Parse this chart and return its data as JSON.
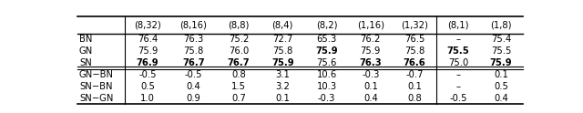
{
  "col_headers": [
    "",
    "(8,32)",
    "(8,16)",
    "(8,8)",
    "(8,4)",
    "(8,2)",
    "(1,16)",
    "(1,32)",
    "(8,1)",
    "(1,8)"
  ],
  "rows": [
    {
      "label": "BN",
      "values": [
        "76.4",
        "76.3",
        "75.2",
        "72.7",
        "65.3",
        "76.2",
        "76.5",
        "–",
        "75.4"
      ],
      "bold": [
        false,
        false,
        false,
        false,
        false,
        false,
        false,
        false,
        false
      ]
    },
    {
      "label": "GN",
      "values": [
        "75.9",
        "75.8",
        "76.0",
        "75.8",
        "75.9",
        "75.9",
        "75.8",
        "75.5",
        "75.5"
      ],
      "bold": [
        false,
        false,
        false,
        false,
        true,
        false,
        false,
        true,
        false
      ]
    },
    {
      "label": "SN",
      "values": [
        "76.9",
        "76.7",
        "76.7",
        "75.9",
        "75.6",
        "76.3",
        "76.6",
        "75.0",
        "75.9"
      ],
      "bold": [
        true,
        true,
        true,
        true,
        false,
        true,
        true,
        false,
        true
      ]
    },
    {
      "label": "GN−BN",
      "values": [
        "-0.5",
        "-0.5",
        "0.8",
        "3.1",
        "10.6",
        "-0.3",
        "-0.7",
        "–",
        "0.1"
      ],
      "bold": [
        false,
        false,
        false,
        false,
        false,
        false,
        false,
        false,
        false
      ]
    },
    {
      "label": "SN−BN",
      "values": [
        "0.5",
        "0.4",
        "1.5",
        "3.2",
        "10.3",
        "0.1",
        "0.1",
        "–",
        "0.5"
      ],
      "bold": [
        false,
        false,
        false,
        false,
        false,
        false,
        false,
        false,
        false
      ]
    },
    {
      "label": "SN−GN",
      "values": [
        "1.0",
        "0.9",
        "0.7",
        "0.1",
        "-0.3",
        "0.4",
        "0.8",
        "-0.5",
        "0.4"
      ],
      "bold": [
        false,
        false,
        false,
        false,
        false,
        false,
        false,
        false,
        false
      ]
    }
  ],
  "background_color": "#ffffff",
  "font_size": 7.2
}
